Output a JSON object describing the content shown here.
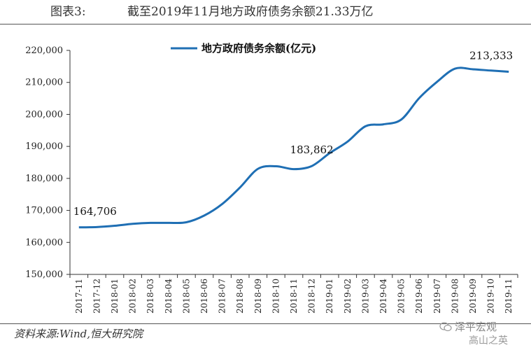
{
  "figure": {
    "label": "图表3:",
    "title": "截至2019年11月地方政府债务余额21.33万亿",
    "source": "资料来源:Wind,恒大研究院"
  },
  "watermark": {
    "line1": "泽平宏观",
    "line2": "高山之英"
  },
  "chart_data": {
    "type": "line",
    "title": "截至2019年11月地方政府债务余额21.33万亿",
    "xlabel": "",
    "ylabel": "",
    "ylim": [
      150000,
      220000
    ],
    "yticks": [
      150000,
      160000,
      170000,
      180000,
      190000,
      200000,
      210000,
      220000
    ],
    "ytick_labels": [
      "150,000",
      "160,000",
      "170,000",
      "180,000",
      "190,000",
      "200,000",
      "210,000",
      "220,000"
    ],
    "categories": [
      "2017-11",
      "2017-12",
      "2018-01",
      "2018-02",
      "2018-03",
      "2018-04",
      "2018-05",
      "2018-06",
      "2018-07",
      "2018-08",
      "2018-09",
      "2018-10",
      "2018-11",
      "2018-12",
      "2019-01",
      "2019-02",
      "2019-03",
      "2019-04",
      "2019-05",
      "2019-06",
      "2019-07",
      "2019-08",
      "2019-09",
      "2019-10",
      "2019-11"
    ],
    "series": [
      {
        "name": "地方政府债务余额(亿元)",
        "color": "#1f6fb4",
        "values": [
          164706,
          164800,
          165200,
          165800,
          166100,
          166100,
          166300,
          168400,
          172000,
          177200,
          183000,
          183800,
          182900,
          183862,
          187900,
          191500,
          196300,
          196900,
          198400,
          205100,
          210200,
          214300,
          214100,
          213700,
          213333
        ]
      }
    ],
    "data_labels": [
      {
        "index": 0,
        "text": "164,706"
      },
      {
        "index": 13,
        "text": "183,862"
      },
      {
        "index": 24,
        "text": "213,333"
      }
    ],
    "legend": {
      "position": "top-left",
      "text": "地方政府债务余额(亿元)"
    },
    "grid": false
  }
}
